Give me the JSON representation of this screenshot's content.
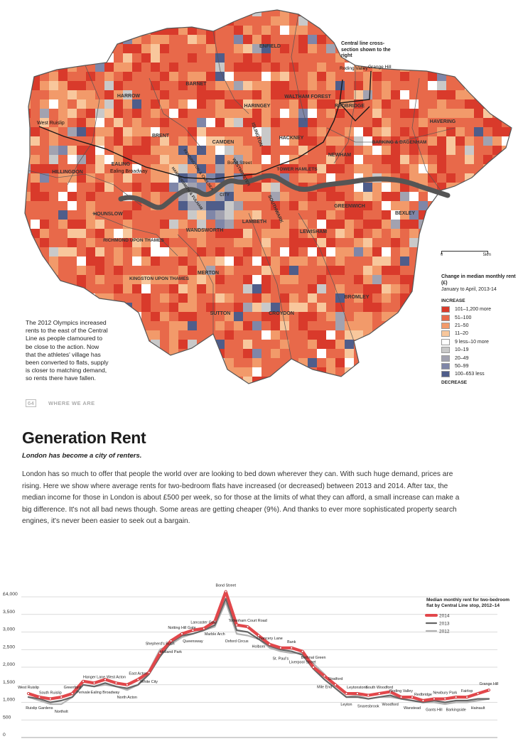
{
  "map": {
    "caption": "The 2012 Olympics increased rents to the east of the Central Line as people clamoured to be close to the action. Now that the athletes' village has been converted to flats, supply is closer to matching demand, so rents there have fallen.",
    "cross_section_note": "Central line cross-section shown to the right",
    "boroughs": [
      {
        "name": "ENFIELD"
      },
      {
        "name": "BARNET"
      },
      {
        "name": "HARROW"
      },
      {
        "name": "HARINGEY"
      },
      {
        "name": "WALTHAM FOREST"
      },
      {
        "name": "REDBRIDGE"
      },
      {
        "name": "HAVERING"
      },
      {
        "name": "BRENT"
      },
      {
        "name": "CAMDEN"
      },
      {
        "name": "ISLINGTON"
      },
      {
        "name": "HACKNEY"
      },
      {
        "name": "BARKING & DAGENHAM"
      },
      {
        "name": "NEWHAM"
      },
      {
        "name": "HILLINGDON"
      },
      {
        "name": "EALING"
      },
      {
        "name": "TOWER HAMLETS"
      },
      {
        "name": "WESTMINSTER"
      },
      {
        "name": "KENSINGTON & CHELSEA"
      },
      {
        "name": "HAMMERSMITH & FULHAM"
      },
      {
        "name": "CITY"
      },
      {
        "name": "SOUTHWARK"
      },
      {
        "name": "GREENWICH"
      },
      {
        "name": "BEXLEY"
      },
      {
        "name": "HOUNSLOW"
      },
      {
        "name": "WANDSWORTH"
      },
      {
        "name": "LAMBETH"
      },
      {
        "name": "LEWISHAM"
      },
      {
        "name": "RICHMOND UPON THAMES"
      },
      {
        "name": "MERTON"
      },
      {
        "name": "KINGSTON UPON THAMES"
      },
      {
        "name": "SUTTON"
      },
      {
        "name": "CROYDON"
      },
      {
        "name": "BROMLEY"
      }
    ],
    "stations": [
      "West Ruislip",
      "Ealing Broadway",
      "Bond Street",
      "Roding Valley",
      "Grange Hill"
    ],
    "scale": {
      "left": "0",
      "right": "5km"
    },
    "legend": {
      "title": "Change in median monthly rent (£)",
      "subtitle": "January to April, 2013-14",
      "increase_label": "INCREASE",
      "decrease_label": "DECREASE",
      "classes": [
        {
          "label": "101–1,200 more",
          "color": "#d93a2b"
        },
        {
          "label": "51–100",
          "color": "#e8694a"
        },
        {
          "label": "21–50",
          "color": "#f29a6a"
        },
        {
          "label": "11–20",
          "color": "#f8c79c"
        },
        {
          "label": "9 less–10 more",
          "color": "#ffffff"
        },
        {
          "label": "10–19",
          "color": "#c9c9c9"
        },
        {
          "label": "20–49",
          "color": "#a2a2b0"
        },
        {
          "label": "50–99",
          "color": "#7f86a8"
        },
        {
          "label": "100–653 less",
          "color": "#4f5d8a"
        }
      ]
    }
  },
  "folio": {
    "page": "64",
    "section": "WHERE WE ARE"
  },
  "article": {
    "headline": "Generation Rent",
    "standfirst": "London has become a city of renters.",
    "body": "London has so much to offer that people the world over are looking to bed down wherever they can. With such huge demand, prices are rising. Here we show where average rents for two-bedroom flats have increased (or decreased) between 2013 and 2014. After tax, the median income for those in London is about £500 per week, so for those at the limits of what they can afford, a small increase can make a big difference. It's not all bad news though. Some areas are getting cheaper (9%). And thanks to ever more sophisticated property search engines, it's never been easier to seek out a bargain."
  },
  "chart_data": {
    "type": "line",
    "title": "Median monthly rent for two-bedroom flat by Central Line stop, 2012–14",
    "xlabel": "",
    "ylabel": "",
    "ylim": [
      0,
      4000
    ],
    "yticks": [
      "0",
      "500",
      "1,000",
      "1,500",
      "2,000",
      "2,500",
      "3,000",
      "3,500",
      "£4,000"
    ],
    "grid": true,
    "legend_position": "top-right",
    "categories": [
      "West Ruislip",
      "Ruislip Gardens",
      "South Ruislip",
      "Northolt",
      "Greenford",
      "Perivale",
      "Hanger Lane",
      "Ealing Broadway",
      "West Acton",
      "North Acton",
      "East Acton",
      "White City",
      "Shepherd's Bush",
      "Holland Park",
      "Notting Hill Gate",
      "Queensway",
      "Lancaster Gate",
      "Marble Arch",
      "Bond Street",
      "Oxford Circus",
      "Tottenham Court Road",
      "Holborn",
      "Chancery Lane",
      "St. Paul's",
      "Bank",
      "Liverpool Street",
      "Bethnal Green",
      "Mile End",
      "Stratford",
      "Leyton",
      "Leytonstone",
      "Snaresbrook",
      "South Woodford",
      "Woodford",
      "Roding Valley",
      "Wanstead",
      "Redbridge",
      "Gants Hill",
      "Newbury Park",
      "Barkingside",
      "Fairlop",
      "Hainault",
      "Grange Hill"
    ],
    "series": [
      {
        "name": "2014",
        "color": "#e2474b",
        "values": [
          1250,
          1150,
          1100,
          1150,
          1250,
          1600,
          1550,
          1650,
          1550,
          1500,
          1650,
          1850,
          2400,
          2750,
          2950,
          3050,
          3100,
          3300,
          4150,
          3200,
          3150,
          2900,
          2650,
          2550,
          2550,
          2450,
          2000,
          1750,
          1500,
          1250,
          1250,
          1200,
          1250,
          1300,
          1150,
          1150,
          1050,
          1100,
          1100,
          1150,
          1150,
          1250,
          1350
        ]
      },
      {
        "name": "2013",
        "color": "#666666",
        "values": [
          1150,
          1100,
          1000,
          1050,
          1150,
          1500,
          1450,
          1550,
          1450,
          1400,
          1500,
          1800,
          2300,
          2700,
          2900,
          2950,
          3050,
          3200,
          3950,
          3050,
          3000,
          2800,
          2600,
          2500,
          2450,
          2350,
          1950,
          1650,
          1400,
          1150,
          1150,
          1100,
          1150,
          1200,
          1100,
          1050,
          1000,
          1050,
          1000,
          1050,
          1050,
          1100,
          1100
        ]
      },
      {
        "name": "2012",
        "color": "#b3b3b3",
        "values": [
          1150,
          1050,
          950,
          950,
          1150,
          1500,
          1450,
          1500,
          1450,
          1350,
          1500,
          1900,
          2500,
          2650,
          2850,
          2950,
          3050,
          3150,
          3850,
          2950,
          2900,
          2800,
          2550,
          2450,
          2400,
          2400,
          2100,
          1800,
          1400,
          1150,
          1200,
          1100,
          1150,
          1150,
          1100,
          1050,
          1000,
          1000,
          950,
          1000,
          1000,
          1050,
          1100
        ]
      }
    ]
  }
}
